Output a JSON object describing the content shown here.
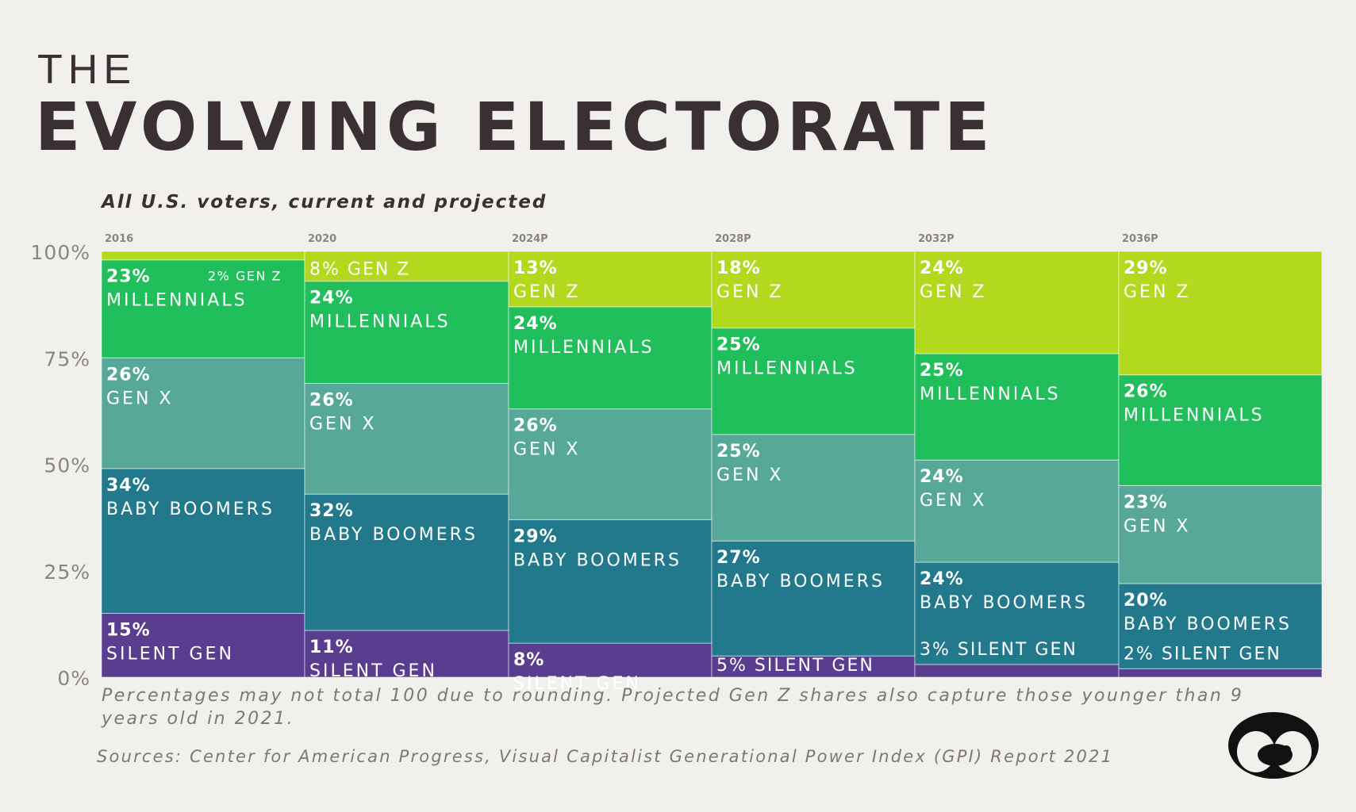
{
  "title": {
    "top": "THE",
    "main": "EVOLVING ELECTORATE"
  },
  "subtitle": "All U.S. voters, current and projected",
  "footnote": "Percentages may not total 100 due to rounding. Projected Gen Z shares also capture those younger than 9 years old in 2021.",
  "sources": "Sources: Center for American Progress, Visual Capitalist Generational Power Index (GPI) Report 2021",
  "colors": {
    "silent_gen": "#5a3d8f",
    "baby_boomers": "#21798b",
    "gen_x": "#58a899",
    "millennials": "#21bf5b",
    "gen_z": "#b2d91e",
    "axis_text": "#8a8585",
    "background": "#f1f0ec"
  },
  "chart_data": {
    "type": "bar",
    "stacked": true,
    "title": "THE EVOLVING ELECTORATE",
    "subtitle": "All U.S. voters, current and projected",
    "categories": [
      "2016",
      "2020",
      "2024P",
      "2028P",
      "2032P",
      "2036P"
    ],
    "y_ticks": [
      "0%",
      "25%",
      "50%",
      "75%",
      "100%"
    ],
    "ylim": [
      0,
      100
    ],
    "series": [
      {
        "name": "SILENT GEN",
        "key": "silent_gen",
        "values": [
          15,
          11,
          8,
          5,
          3,
          2
        ],
        "labels": [
          "15%",
          "11%",
          "8%",
          "5%",
          "3%",
          "2%"
        ]
      },
      {
        "name": "BABY BOOMERS",
        "key": "baby_boomers",
        "values": [
          34,
          32,
          29,
          27,
          24,
          20
        ],
        "labels": [
          "34%",
          "32%",
          "29%",
          "27%",
          "24%",
          "20%"
        ]
      },
      {
        "name": "GEN X",
        "key": "gen_x",
        "values": [
          26,
          26,
          26,
          25,
          24,
          23
        ],
        "labels": [
          "26%",
          "26%",
          "26%",
          "25%",
          "24%",
          "23%"
        ]
      },
      {
        "name": "MILLENNIALS",
        "key": "millennials",
        "values": [
          23,
          24,
          24,
          25,
          25,
          26
        ],
        "labels": [
          "23%",
          "24%",
          "24%",
          "25%",
          "25%",
          "26%"
        ]
      },
      {
        "name": "GEN Z",
        "key": "gen_z",
        "values": [
          2,
          8,
          13,
          18,
          24,
          29
        ],
        "labels": [
          "2%",
          "8%",
          "13%",
          "18%",
          "24%",
          "29%"
        ]
      }
    ]
  }
}
